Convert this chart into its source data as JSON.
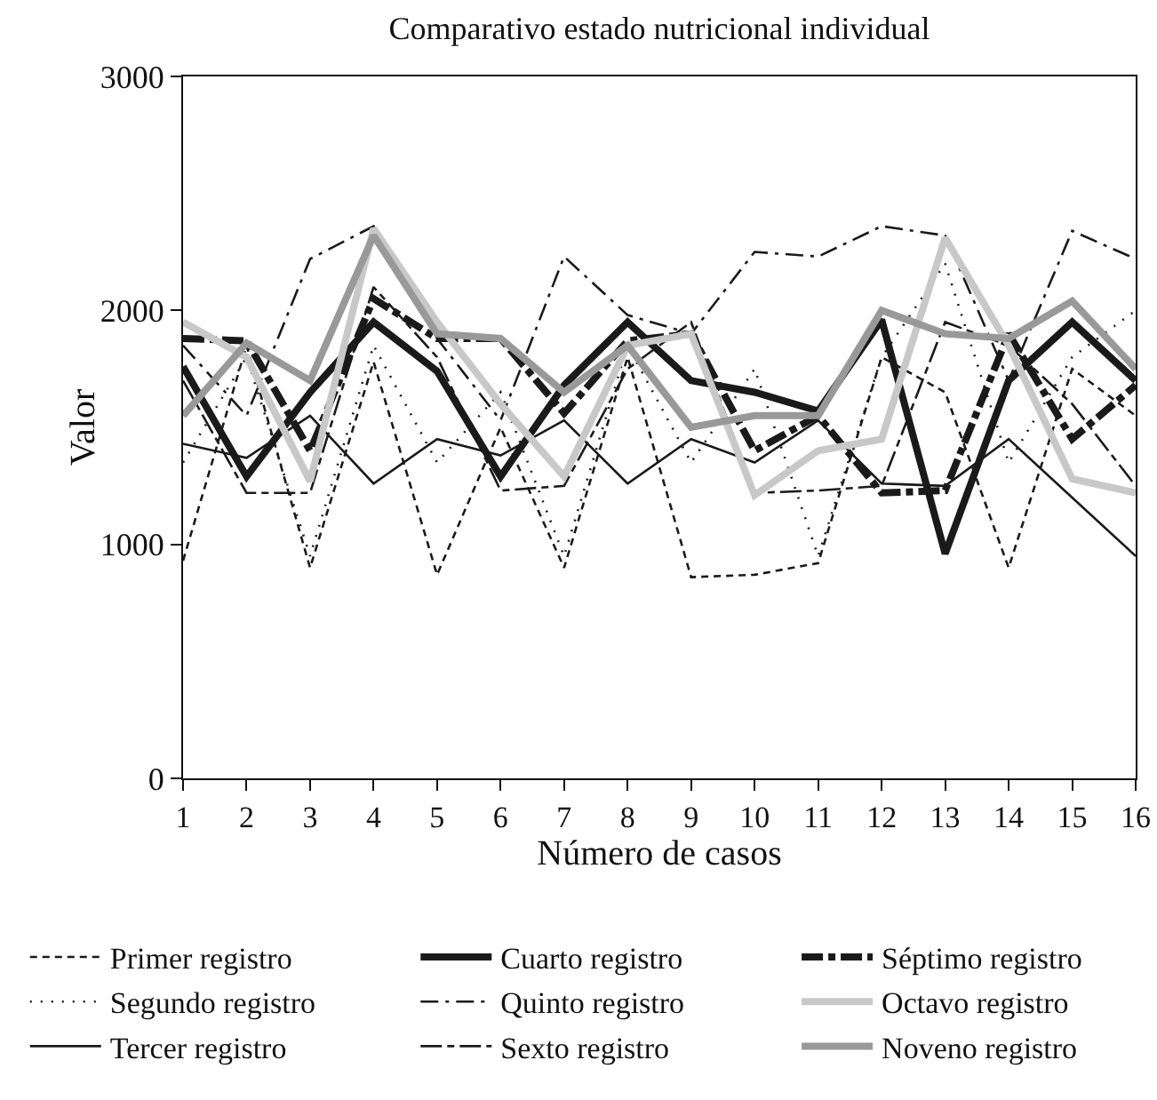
{
  "chart_data": {
    "type": "line",
    "title": "Comparativo estado nutricional individual",
    "xlabel": "Número de casos",
    "ylabel": "Valor",
    "x": [
      1,
      2,
      3,
      4,
      5,
      6,
      7,
      8,
      9,
      10,
      11,
      12,
      13,
      14,
      15,
      16
    ],
    "xlim": [
      1,
      16
    ],
    "xticks": [
      1,
      2,
      3,
      4,
      5,
      6,
      7,
      8,
      9,
      10,
      11,
      12,
      13,
      14,
      15,
      16
    ],
    "ylim": [
      0,
      3000
    ],
    "yticks": [
      0,
      1000,
      2000,
      3000
    ],
    "grid": false,
    "legend": "bottom",
    "marker": "none",
    "series": [
      {
        "name": "Primer registro",
        "color": "#1a1a1a",
        "line_style": "dashed",
        "values": [
          930,
          1850,
          900,
          1780,
          870,
          1500,
          900,
          1800,
          860,
          870,
          920,
          1800,
          1650,
          900,
          1750,
          1550
        ]
      },
      {
        "name": "Segundo registro",
        "color": "#1a1a1a",
        "line_style": "dotted",
        "values": [
          1350,
          1800,
          950,
          1850,
          1350,
          1650,
          950,
          1850,
          1350,
          1750,
          950,
          1800,
          2200,
          1350,
          1800,
          2000
        ]
      },
      {
        "name": "Tercer registro",
        "color": "#1a1a1a",
        "line_style": "solid",
        "values": [
          1430,
          1370,
          1550,
          1260,
          1450,
          1380,
          1530,
          1260,
          1450,
          1350,
          1530,
          1260,
          1250,
          1450,
          1200,
          950
        ]
      },
      {
        "name": "Cuarto registro",
        "color": "#1a1a1a",
        "line_style": "solid",
        "values": [
          1760,
          1290,
          1650,
          1950,
          1740,
          1290,
          1680,
          1950,
          1700,
          1650,
          1570,
          1960,
          960,
          1700,
          1950,
          1700
        ]
      },
      {
        "name": "Quinto registro",
        "color": "#1a1a1a",
        "line_style": "dashdot",
        "values": [
          1850,
          1550,
          2220,
          2360,
          1880,
          1530,
          2230,
          1980,
          1900,
          2250,
          2230,
          2360,
          2320,
          1700,
          2340,
          2220
        ]
      },
      {
        "name": "Sexto registro",
        "color": "#1a1a1a",
        "line_style": "longdashdot",
        "values": [
          1700,
          1220,
          1220,
          2100,
          1800,
          1230,
          1250,
          1750,
          1950,
          1220,
          1230,
          1250,
          1950,
          1850,
          1600,
          1250
        ]
      },
      {
        "name": "Séptimo registro",
        "color": "#1a1a1a",
        "line_style": "longdashdot",
        "values": [
          1880,
          1870,
          1400,
          2050,
          1880,
          1880,
          1560,
          1870,
          1900,
          1400,
          1550,
          1220,
          1230,
          1900,
          1450,
          1680
        ]
      },
      {
        "name": "Octavo registro",
        "color": "#c8c8c8",
        "line_style": "solid",
        "values": [
          1950,
          1800,
          1270,
          2350,
          1950,
          1600,
          1290,
          1850,
          1900,
          1210,
          1400,
          1450,
          2310,
          1850,
          1280,
          1220
        ]
      },
      {
        "name": "Noveno registro",
        "color": "#999999",
        "line_style": "solid",
        "values": [
          1550,
          1860,
          1700,
          2320,
          1900,
          1880,
          1650,
          1850,
          1500,
          1550,
          1550,
          2000,
          1900,
          1880,
          2040,
          1750
        ]
      }
    ]
  }
}
